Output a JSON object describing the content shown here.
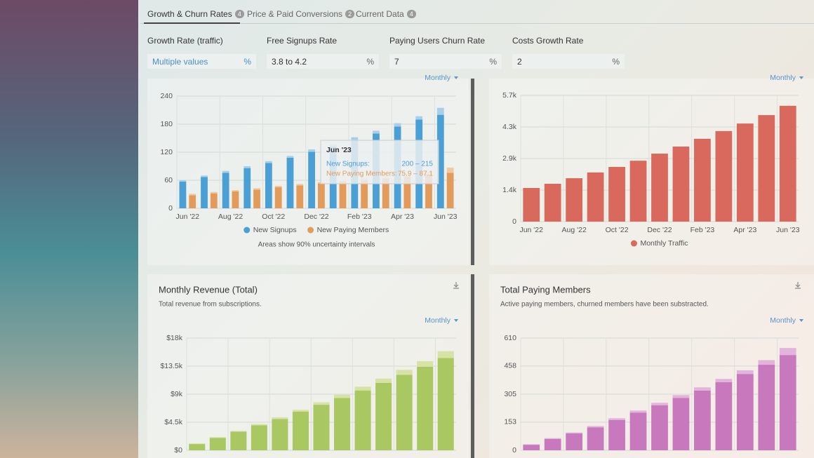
{
  "tabs": [
    {
      "label": "Growth & Churn Rates",
      "badge": "4"
    },
    {
      "label": "Price & Paid Conversions",
      "badge": "2"
    },
    {
      "label": "Current Data",
      "badge": "4"
    }
  ],
  "filters": [
    {
      "label": "Growth Rate (traffic)",
      "value": "Multiple values",
      "unit": "%"
    },
    {
      "label": "Free Signups Rate",
      "value": "3.8 to 4.2",
      "unit": "%"
    },
    {
      "label": "Paying Users Churn Rate",
      "value": "7",
      "unit": "%"
    },
    {
      "label": "Costs Growth Rate",
      "value": "2",
      "unit": "%"
    }
  ],
  "chart_data": [
    {
      "type": "bar",
      "period": "Monthly",
      "categories": [
        "Jun '22",
        null,
        "Aug '22",
        null,
        "Oct '22",
        null,
        "Dec '22",
        null,
        "Feb '23",
        null,
        "Apr '23",
        null,
        "Jun '23"
      ],
      "series": [
        {
          "name": "New Signups",
          "color": "#4a9fd4",
          "upper_color": "#a8cfe9",
          "values": [
            57,
            67,
            76,
            86,
            97,
            108,
            121,
            132,
            146,
            160,
            175,
            190,
            200
          ],
          "upper": [
            60,
            70,
            80,
            90,
            101,
            112,
            126,
            137,
            152,
            166,
            182,
            197,
            215
          ]
        },
        {
          "name": "New Paying Members",
          "color": "#e39b5c",
          "upper_color": "#f1c9a0",
          "values": [
            28,
            32,
            36,
            40,
            45,
            49,
            53,
            57,
            60,
            64,
            68,
            72,
            75.9
          ],
          "upper": [
            31,
            35,
            39,
            43,
            48,
            52,
            56,
            60,
            64,
            68,
            72,
            77,
            87.1
          ]
        }
      ],
      "ylim": [
        0,
        240
      ],
      "yticks": [
        0,
        60,
        120,
        180,
        240
      ],
      "note": "Areas show 90% uncertainty intervals",
      "tooltip": {
        "title": "Jun '23",
        "rows": [
          {
            "label": "New Signups:",
            "value": "200 – 215"
          },
          {
            "label": "New Paying Members:",
            "value": "75.9 – 87.1"
          }
        ]
      }
    },
    {
      "type": "bar",
      "period": "Monthly",
      "categories": [
        "Jun '22",
        null,
        "Aug '22",
        null,
        "Oct '22",
        null,
        "Dec '22",
        null,
        "Feb '23",
        null,
        "Apr '23",
        null,
        "Jun '23"
      ],
      "series": [
        {
          "name": "Monthly Traffic",
          "color": "#d9695c",
          "values": [
            1520,
            1710,
            1960,
            2220,
            2470,
            2750,
            3070,
            3390,
            3740,
            4090,
            4430,
            4810,
            5230
          ]
        }
      ],
      "ylim": [
        0,
        5700
      ],
      "yticks": [
        0,
        {
          "value": 1425,
          "label": "1.4k"
        },
        {
          "value": 2850,
          "label": "2.9k"
        },
        {
          "value": 4275,
          "label": "4.3k"
        },
        {
          "value": 5700,
          "label": "5.7k"
        }
      ]
    },
    {
      "type": "bar",
      "title": "Monthly Revenue (Total)",
      "subtitle": "Total revenue from subscriptions.",
      "period": "Monthly",
      "series": [
        {
          "color": "#a9c862",
          "upper_color": "#d6e2a6",
          "values": [
            1000,
            2000,
            3000,
            4000,
            5000,
            6200,
            7300,
            8400,
            9600,
            10800,
            12100,
            13400,
            14800
          ],
          "upper": [
            1100,
            2100,
            3100,
            4200,
            5300,
            6500,
            7700,
            8900,
            10200,
            11500,
            12900,
            14300,
            15900
          ]
        }
      ],
      "ylim": [
        0,
        18000
      ],
      "yticks": [
        {
          "value": 0,
          "label": "$0"
        },
        {
          "value": 4500,
          "label": "$4.5k"
        },
        {
          "value": 9000,
          "label": "$9k"
        },
        {
          "value": 13500,
          "label": "$13.5k"
        },
        {
          "value": 18000,
          "label": "$18k"
        }
      ]
    },
    {
      "type": "bar",
      "title": "Total Paying Members",
      "subtitle": "Active paying members, churned members have been substracted.",
      "period": "Monthly",
      "series": [
        {
          "color": "#c879be",
          "upper_color": "#e2b4dc",
          "values": [
            30,
            62,
            92,
            125,
            165,
            205,
            245,
            285,
            325,
            370,
            415,
            465,
            518
          ],
          "upper": [
            33,
            66,
            97,
            132,
            174,
            216,
            258,
            300,
            342,
            388,
            435,
            490,
            556
          ]
        }
      ],
      "ylim": [
        0,
        610
      ],
      "yticks": [
        0,
        153,
        305,
        458,
        610
      ]
    }
  ]
}
